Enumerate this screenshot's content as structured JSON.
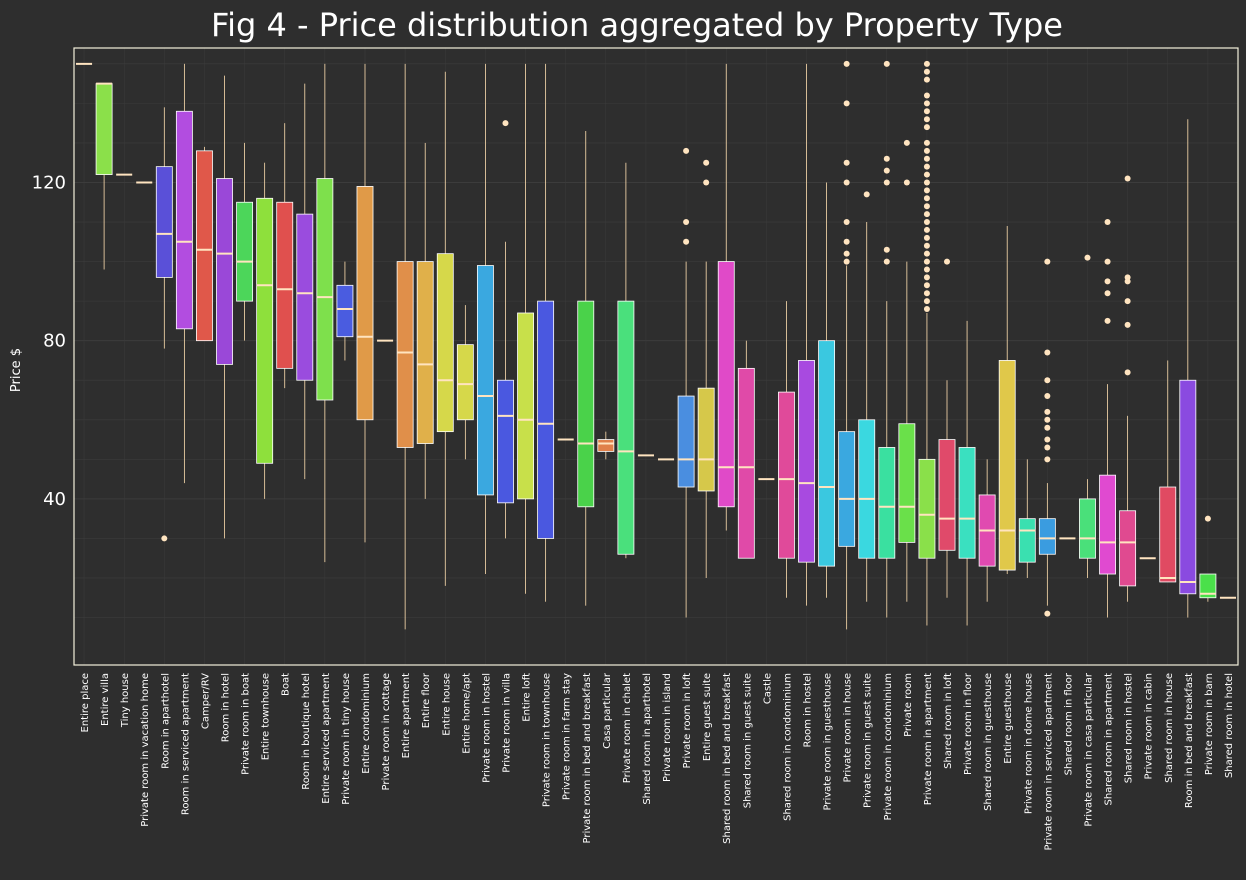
{
  "chart_data": {
    "type": "box",
    "title": "Fig 4 - Price distribution aggregated by Property Type",
    "xlabel": "",
    "ylabel": "Price $",
    "ylim": [
      -2,
      154
    ],
    "yticks": [
      40,
      80,
      120
    ],
    "grid": true,
    "colors": {
      "background": "#2e2e2e",
      "frame": "#f4f1dc",
      "whisker": "#ffdfb0",
      "median": "#ffe4c0",
      "grid": "#3c3c3c"
    },
    "boxes": [
      {
        "category": "Entire place",
        "whislo": 150,
        "q1": 150,
        "med": 150,
        "q3": 150,
        "whishi": 150,
        "fliers": [],
        "color": "#ffe4c0"
      },
      {
        "category": "Entire villa",
        "whislo": 98,
        "q1": 122,
        "med": 145,
        "q3": 145,
        "whishi": 145,
        "fliers": [],
        "color": "#8be04a"
      },
      {
        "category": "Tiny house",
        "whislo": 122,
        "q1": 122,
        "med": 122,
        "q3": 122,
        "whishi": 122,
        "fliers": [],
        "color": "#ffe4c0"
      },
      {
        "category": "Private room in vacation home",
        "whislo": 120,
        "q1": 120,
        "med": 120,
        "q3": 120,
        "whishi": 120,
        "fliers": [],
        "color": "#ffe4c0"
      },
      {
        "category": "Room in aparthotel",
        "whislo": 78,
        "q1": 96,
        "med": 107,
        "q3": 124,
        "whishi": 139,
        "fliers": [
          30
        ],
        "color": "#5a50d8"
      },
      {
        "category": "Room in serviced apartment",
        "whislo": 44,
        "q1": 83,
        "med": 105,
        "q3": 138,
        "whishi": 150,
        "fliers": [],
        "color": "#b24de0"
      },
      {
        "category": "Camper/RV",
        "whislo": 80,
        "q1": 80,
        "med": 103,
        "q3": 128,
        "whishi": 129,
        "fliers": [],
        "color": "#e0584a"
      },
      {
        "category": "Room in hotel",
        "whislo": 30,
        "q1": 74,
        "med": 102,
        "q3": 121,
        "whishi": 147,
        "fliers": [],
        "color": "#9a48d8"
      },
      {
        "category": "Private room in boat",
        "whislo": 80,
        "q1": 90,
        "med": 100,
        "q3": 115,
        "whishi": 130,
        "fliers": [],
        "color": "#4cd65a"
      },
      {
        "category": "Entire townhouse",
        "whislo": 40,
        "q1": 49,
        "med": 94,
        "q3": 116,
        "whishi": 125,
        "fliers": [],
        "color": "#8ee03c"
      },
      {
        "category": "Boat",
        "whislo": 68,
        "q1": 73,
        "med": 93,
        "q3": 115,
        "whishi": 135,
        "fliers": [],
        "color": "#e0504e"
      },
      {
        "category": "Room in boutique hotel",
        "whislo": 45,
        "q1": 70,
        "med": 92,
        "q3": 112,
        "whishi": 145,
        "fliers": [],
        "color": "#9a4cde"
      },
      {
        "category": "Entire serviced apartment",
        "whislo": 24,
        "q1": 65,
        "med": 91,
        "q3": 121,
        "whishi": 150,
        "fliers": [],
        "color": "#7ee04c"
      },
      {
        "category": "Private room in tiny house",
        "whislo": 75,
        "q1": 81,
        "med": 88,
        "q3": 94,
        "whishi": 100,
        "fliers": [],
        "color": "#4a5ce0"
      },
      {
        "category": "Entire condominium",
        "whislo": 29,
        "q1": 60,
        "med": 81,
        "q3": 119,
        "whishi": 150,
        "fliers": [],
        "color": "#e09a48"
      },
      {
        "category": "Private room in cottage",
        "whislo": 80,
        "q1": 80,
        "med": 80,
        "q3": 80,
        "whishi": 80,
        "fliers": [],
        "color": "#ffe4c0"
      },
      {
        "category": "Entire apartment",
        "whislo": 7,
        "q1": 53,
        "med": 77,
        "q3": 100,
        "whishi": 150,
        "fliers": [],
        "color": "#e08f4a"
      },
      {
        "category": "Entire floor",
        "whislo": 40,
        "q1": 54,
        "med": 74,
        "q3": 100,
        "whishi": 130,
        "fliers": [],
        "color": "#e0b04a"
      },
      {
        "category": "Entire house",
        "whislo": 18,
        "q1": 57,
        "med": 70,
        "q3": 102,
        "whishi": 148,
        "fliers": [],
        "color": "#d6d84a"
      },
      {
        "category": "Entire home/apt",
        "whislo": 50,
        "q1": 60,
        "med": 69,
        "q3": 79,
        "whishi": 89,
        "fliers": [],
        "color": "#d6d84a"
      },
      {
        "category": "Private room in hostel",
        "whislo": 21,
        "q1": 41,
        "med": 66,
        "q3": 99,
        "whishi": 150,
        "fliers": [],
        "color": "#3aa8e0"
      },
      {
        "category": "Private room in villa",
        "whislo": 30,
        "q1": 39,
        "med": 61,
        "q3": 70,
        "whishi": 105,
        "fliers": [
          135
        ],
        "color": "#4a58e0"
      },
      {
        "category": "Entire loft",
        "whislo": 16,
        "q1": 40,
        "med": 60,
        "q3": 87,
        "whishi": 150,
        "fliers": [],
        "color": "#c8e04a"
      },
      {
        "category": "Private room in townhouse",
        "whislo": 14,
        "q1": 30,
        "med": 59,
        "q3": 90,
        "whishi": 150,
        "fliers": [],
        "color": "#4a58e0"
      },
      {
        "category": "Private room in farm stay",
        "whislo": 55,
        "q1": 55,
        "med": 55,
        "q3": 55,
        "whishi": 55,
        "fliers": [],
        "color": "#ffe4c0"
      },
      {
        "category": "Private room in bed and breakfast",
        "whislo": 13,
        "q1": 38,
        "med": 54,
        "q3": 90,
        "whishi": 133,
        "fliers": [],
        "color": "#4ad24a"
      },
      {
        "category": "Casa particular",
        "whislo": 50,
        "q1": 52,
        "med": 54,
        "q3": 55,
        "whishi": 57,
        "fliers": [],
        "color": "#e0804a"
      },
      {
        "category": "Private room in chalet",
        "whislo": 25,
        "q1": 26,
        "med": 52,
        "q3": 90,
        "whishi": 125,
        "fliers": [],
        "color": "#4ae07c"
      },
      {
        "category": "Shared room in aparthotel",
        "whislo": 51,
        "q1": 51,
        "med": 51,
        "q3": 51,
        "whishi": 51,
        "fliers": [],
        "color": "#ffe4c0"
      },
      {
        "category": "Private room in island",
        "whislo": 50,
        "q1": 50,
        "med": 50,
        "q3": 50,
        "whishi": 50,
        "fliers": [],
        "color": "#ffe4c0"
      },
      {
        "category": "Private room in loft",
        "whislo": 10,
        "q1": 43,
        "med": 50,
        "q3": 66,
        "whishi": 100,
        "fliers": [
          105,
          110,
          128
        ],
        "color": "#4a8ee0"
      },
      {
        "category": "Entire guest suite",
        "whislo": 20,
        "q1": 42,
        "med": 50,
        "q3": 68,
        "whishi": 100,
        "fliers": [
          120,
          125
        ],
        "color": "#d6c84a"
      },
      {
        "category": "Shared room in bed and breakfast",
        "whislo": 32,
        "q1": 38,
        "med": 48,
        "q3": 100,
        "whishi": 150,
        "fliers": [],
        "color": "#e04ac8"
      },
      {
        "category": "Shared room in guest suite",
        "whislo": 25,
        "q1": 25,
        "med": 48,
        "q3": 73,
        "whishi": 80,
        "fliers": [],
        "color": "#e04aa8"
      },
      {
        "category": "Castle",
        "whislo": 45,
        "q1": 45,
        "med": 45,
        "q3": 45,
        "whishi": 45,
        "fliers": [],
        "color": "#ffe4c0"
      },
      {
        "category": "Shared room in condominium",
        "whislo": 15,
        "q1": 25,
        "med": 45,
        "q3": 67,
        "whishi": 90,
        "fliers": [],
        "color": "#e04a9a"
      },
      {
        "category": "Room in hostel",
        "whislo": 13,
        "q1": 24,
        "med": 44,
        "q3": 75,
        "whishi": 150,
        "fliers": [],
        "color": "#a84ae0"
      },
      {
        "category": "Private room in guesthouse",
        "whislo": 15,
        "q1": 23,
        "med": 43,
        "q3": 80,
        "whishi": 120,
        "fliers": [],
        "color": "#3ac8e0"
      },
      {
        "category": "Private room in house",
        "whislo": 7,
        "q1": 28,
        "med": 40,
        "q3": 57,
        "whishi": 99,
        "fliers": [
          100,
          102,
          105,
          110,
          120,
          125,
          140,
          150
        ],
        "color": "#3aa8e0"
      },
      {
        "category": "Private room in guest suite",
        "whislo": 14,
        "q1": 25,
        "med": 40,
        "q3": 60,
        "whishi": 110,
        "fliers": [
          117
        ],
        "color": "#3ad8e0"
      },
      {
        "category": "Private room in condominium",
        "whislo": 10,
        "q1": 25,
        "med": 38,
        "q3": 53,
        "whishi": 90,
        "fliers": [
          100,
          103,
          120,
          123,
          126,
          150
        ],
        "color": "#3ae0a0"
      },
      {
        "category": "Private room",
        "whislo": 14,
        "q1": 29,
        "med": 38,
        "q3": 59,
        "whishi": 100,
        "fliers": [
          120,
          130
        ],
        "color": "#6ae04a"
      },
      {
        "category": "Private room in apartment",
        "whislo": 8,
        "q1": 25,
        "med": 36,
        "q3": 50,
        "whishi": 87,
        "fliers": [
          88,
          90,
          92,
          94,
          96,
          98,
          100,
          102,
          104,
          106,
          108,
          110,
          112,
          114,
          116,
          118,
          120,
          122,
          124,
          126,
          128,
          130,
          134,
          136,
          138,
          140,
          142,
          146,
          148,
          150
        ],
        "color": "#8ae04a"
      },
      {
        "category": "Shared room in loft",
        "whislo": 15,
        "q1": 27,
        "med": 35,
        "q3": 55,
        "whishi": 70,
        "fliers": [
          100
        ],
        "color": "#e04a6a"
      },
      {
        "category": "Private room in floor",
        "whislo": 8,
        "q1": 25,
        "med": 35,
        "q3": 53,
        "whishi": 85,
        "fliers": [],
        "color": "#3ae0c0"
      },
      {
        "category": "Shared room in guesthouse",
        "whislo": 14,
        "q1": 23,
        "med": 32,
        "q3": 41,
        "whishi": 50,
        "fliers": [],
        "color": "#e04ab0"
      },
      {
        "category": "Entire guesthouse",
        "whislo": 21,
        "q1": 22,
        "med": 32,
        "q3": 75,
        "whishi": 109,
        "fliers": [],
        "color": "#e0c84a"
      },
      {
        "category": "Private room in dome house",
        "whislo": 20,
        "q1": 24,
        "med": 32,
        "q3": 35,
        "whishi": 50,
        "fliers": [],
        "color": "#3ae0b0"
      },
      {
        "category": "Private room in serviced apartment",
        "whislo": 13,
        "q1": 26,
        "med": 30,
        "q3": 35,
        "whishi": 44,
        "fliers": [
          11,
          50,
          53,
          55,
          58,
          60,
          62,
          66,
          70,
          77,
          100
        ],
        "color": "#3a9ce0"
      },
      {
        "category": "Shared room in floor",
        "whislo": 30,
        "q1": 30,
        "med": 30,
        "q3": 30,
        "whishi": 30,
        "fliers": [],
        "color": "#ffe4c0"
      },
      {
        "category": "Private room in casa particular",
        "whislo": 20,
        "q1": 25,
        "med": 30,
        "q3": 40,
        "whishi": 45,
        "fliers": [
          101
        ],
        "color": "#4ae07a"
      },
      {
        "category": "Shared room in apartment",
        "whislo": 10,
        "q1": 21,
        "med": 29,
        "q3": 46,
        "whishi": 69,
        "fliers": [
          85,
          92,
          95,
          100,
          110
        ],
        "color": "#e04ad0"
      },
      {
        "category": "Shared room in hostel",
        "whislo": 14,
        "q1": 18,
        "med": 29,
        "q3": 37,
        "whishi": 61,
        "fliers": [
          72,
          84,
          90,
          95,
          96,
          121
        ],
        "color": "#e04a90"
      },
      {
        "category": "Private room in cabin",
        "whislo": 25,
        "q1": 25,
        "med": 25,
        "q3": 25,
        "whishi": 25,
        "fliers": [],
        "color": "#ffe4c0"
      },
      {
        "category": "Shared room in house",
        "whislo": 19,
        "q1": 19,
        "med": 20,
        "q3": 43,
        "whishi": 75,
        "fliers": [],
        "color": "#e04a62"
      },
      {
        "category": "Room in bed and breakfast",
        "whislo": 10,
        "q1": 16,
        "med": 19,
        "q3": 70,
        "whishi": 136,
        "fliers": [],
        "color": "#8a4ae0"
      },
      {
        "category": "Private room in barn",
        "whislo": 14,
        "q1": 15,
        "med": 16,
        "q3": 21,
        "whishi": 21,
        "fliers": [
          35
        ],
        "color": "#4ae04a"
      },
      {
        "category": "Shared room in hotel",
        "whislo": 15,
        "q1": 15,
        "med": 15,
        "q3": 15,
        "whishi": 15,
        "fliers": [],
        "color": "#ffe4c0"
      }
    ]
  }
}
